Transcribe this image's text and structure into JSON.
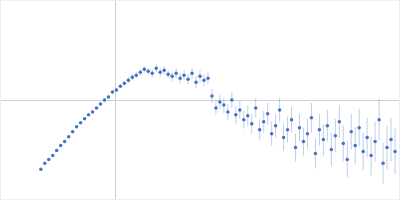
{
  "chart_data": {
    "type": "scatter",
    "color": "#4472c4",
    "marker": "circle",
    "x": [
      40,
      44,
      48,
      52,
      56,
      60,
      64,
      68,
      72,
      76,
      80,
      84,
      88,
      92,
      96,
      100,
      104,
      108,
      112,
      116,
      120,
      124,
      128,
      132,
      136,
      140,
      144,
      148,
      152,
      156,
      160,
      164,
      168,
      172,
      176,
      180,
      184,
      188,
      192,
      196,
      200,
      204,
      208,
      212,
      216,
      220,
      224,
      228,
      232,
      236,
      240,
      244,
      248,
      252,
      256,
      260,
      264,
      268,
      272,
      276,
      280,
      284,
      288,
      292,
      296,
      300,
      304,
      308,
      312,
      316,
      320,
      324,
      328,
      332,
      336,
      340,
      344,
      348,
      352,
      356,
      360,
      364,
      368,
      372,
      376,
      380,
      384,
      388,
      392,
      396
    ],
    "values": [
      30,
      36,
      40,
      44,
      49,
      54,
      58,
      63,
      68,
      73,
      77,
      81,
      85,
      88,
      92,
      96,
      100,
      103,
      108,
      110,
      114,
      117,
      120,
      123,
      125,
      128,
      131,
      129,
      127,
      132,
      128,
      130,
      126,
      124,
      127,
      122,
      125,
      121,
      127,
      118,
      124,
      120,
      122,
      104,
      92,
      98,
      95,
      88,
      100,
      85,
      90,
      80,
      84,
      76,
      92,
      70,
      78,
      86,
      66,
      74,
      90,
      62,
      70,
      80,
      52,
      72,
      58,
      66,
      82,
      46,
      70,
      60,
      74,
      50,
      64,
      78,
      56,
      40,
      68,
      54,
      72,
      48,
      62,
      44,
      58,
      80,
      36,
      52,
      60,
      48
    ],
    "errors": [
      1,
      1,
      1,
      1,
      1,
      1,
      1,
      1,
      1,
      1,
      1,
      1,
      1,
      1,
      1,
      1,
      2,
      2,
      2,
      2,
      2,
      2,
      3,
      3,
      3,
      3,
      3,
      3,
      4,
      4,
      4,
      4,
      4,
      5,
      5,
      5,
      5,
      5,
      6,
      6,
      6,
      6,
      6,
      7,
      7,
      7,
      8,
      8,
      8,
      9,
      9,
      9,
      10,
      10,
      10,
      11,
      11,
      11,
      12,
      12,
      12,
      13,
      13,
      13,
      14,
      14,
      14,
      15,
      15,
      15,
      16,
      16,
      16,
      17,
      17,
      17,
      18,
      18,
      18,
      19,
      19,
      19,
      20,
      20,
      20,
      21,
      21,
      22,
      22,
      23
    ],
    "xlim": [
      0,
      400
    ],
    "ylim": [
      0,
      200
    ],
    "xticks": [
      115
    ],
    "yticks": [
      100
    ],
    "grid": true,
    "tick_labels": false
  }
}
